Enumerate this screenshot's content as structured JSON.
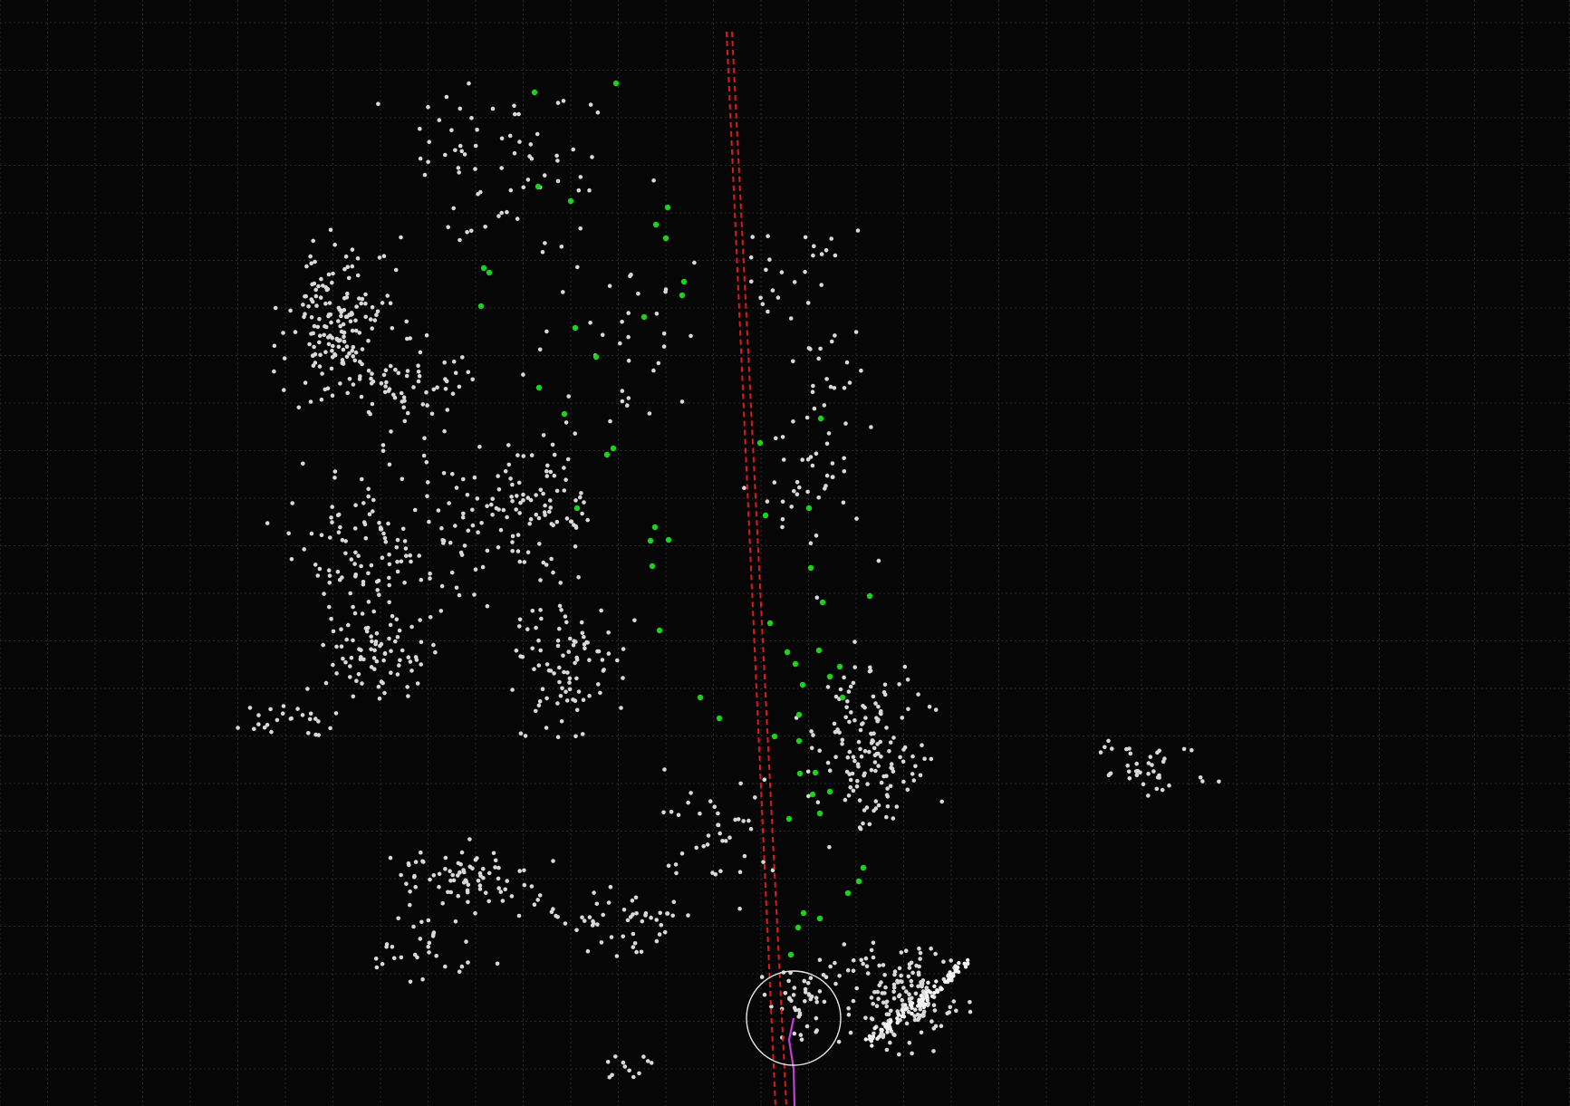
{
  "viewer": {
    "background": "#060606",
    "grid_color": "#2a2a2a",
    "point_color": "#d9d9d9",
    "landmark_color": "#19d419",
    "path_color": "#e01a1a",
    "trajectory_color": "#c83cdc",
    "robot_ring_color": "#e8e8e8"
  },
  "layers": {
    "grid": "grid",
    "point_cloud": "point-cloud",
    "landmarks": "landmarks",
    "planned_path": "planned-path",
    "trajectory": "trajectory",
    "robot_marker": "robot-marker"
  }
}
